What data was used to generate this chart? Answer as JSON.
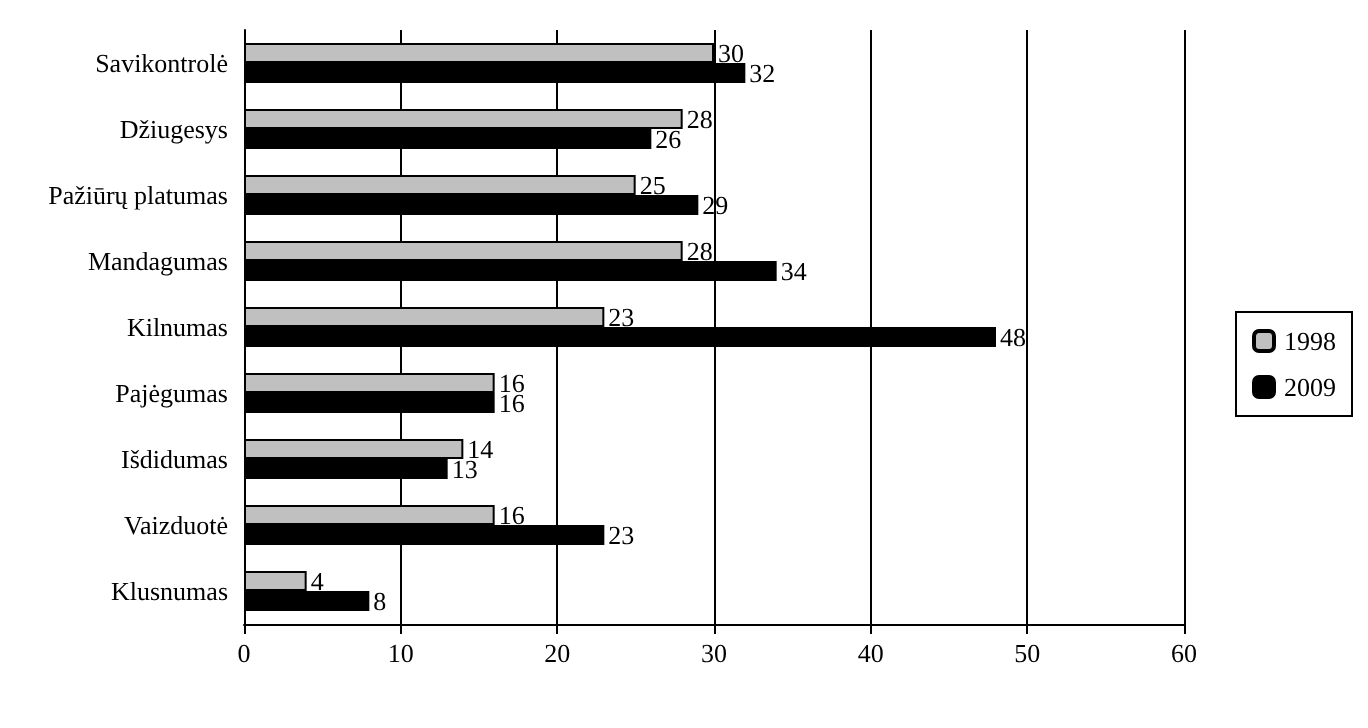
{
  "chart_data": {
    "type": "bar",
    "orientation": "horizontal",
    "categories": [
      "Savikontrolė",
      "Džiugesys",
      "Pažiūrų platumas",
      "Mandagumas",
      "Kilnumas",
      "Pajėgumas",
      "Išdidumas",
      "Vaizduotė",
      "Klusnumas"
    ],
    "series": [
      {
        "name": "1998",
        "color": "#c0c0c0",
        "values": [
          30,
          28,
          25,
          28,
          23,
          16,
          14,
          16,
          4
        ]
      },
      {
        "name": "2009",
        "color": "#000000",
        "values": [
          32,
          26,
          29,
          34,
          48,
          16,
          13,
          23,
          8
        ]
      }
    ],
    "xlim": [
      0,
      60
    ],
    "xticks": [
      0,
      10,
      20,
      30,
      40,
      50,
      60
    ],
    "grid": "x",
    "legend": "right",
    "data_labels": true
  }
}
